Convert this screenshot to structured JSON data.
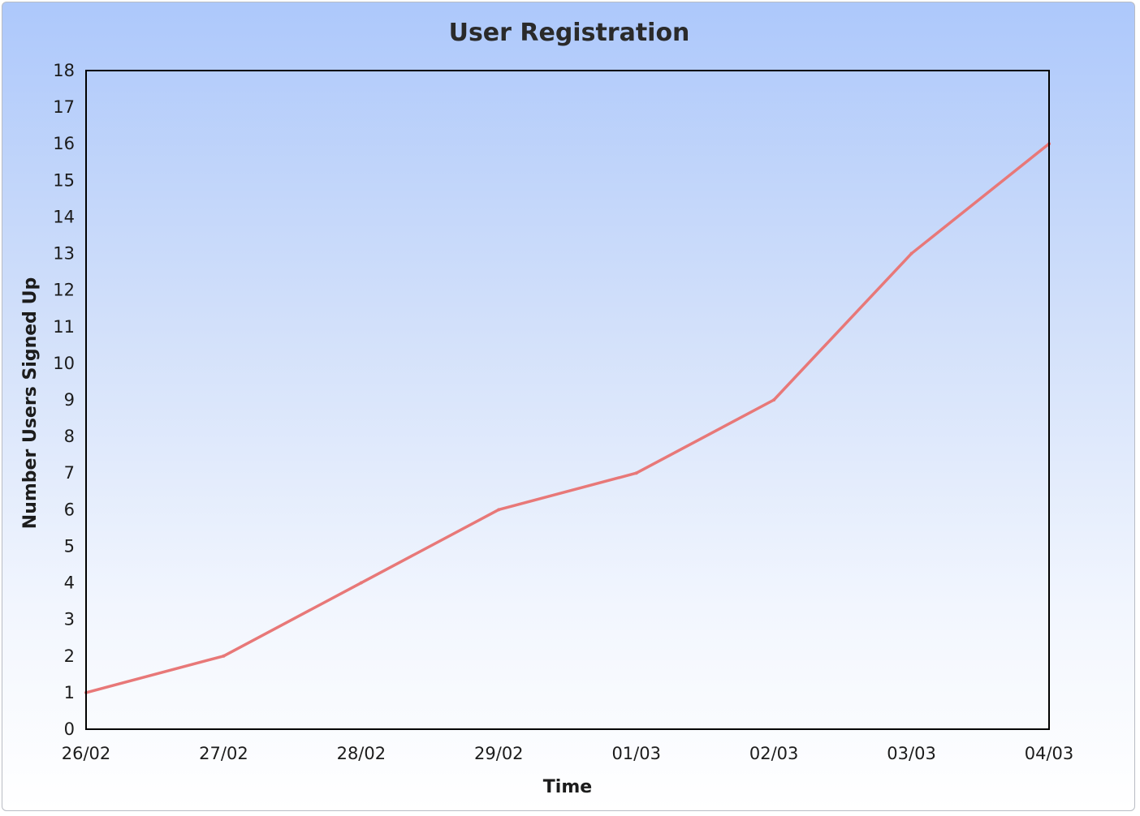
{
  "chart_data": {
    "type": "line",
    "title": "User Registration",
    "xlabel": "Time",
    "ylabel": "Number Users Signed Up",
    "categories": [
      "26/02",
      "27/02",
      "28/02",
      "29/02",
      "01/03",
      "02/03",
      "03/03",
      "04/03"
    ],
    "series": [
      {
        "values": [
          1,
          2,
          4,
          6,
          7,
          9,
          13,
          16
        ],
        "color": "#e87878"
      }
    ],
    "ylim": [
      0,
      18
    ],
    "yticks": [
      0,
      1,
      2,
      3,
      4,
      5,
      6,
      7,
      8,
      9,
      10,
      11,
      12,
      13,
      14,
      15,
      16,
      17,
      18
    ],
    "grid": false,
    "legend": "none",
    "colors": {
      "background_top": "#adc8fb",
      "background_bottom": "#ffffff",
      "axis": "#000000",
      "line": "#e87878"
    }
  }
}
